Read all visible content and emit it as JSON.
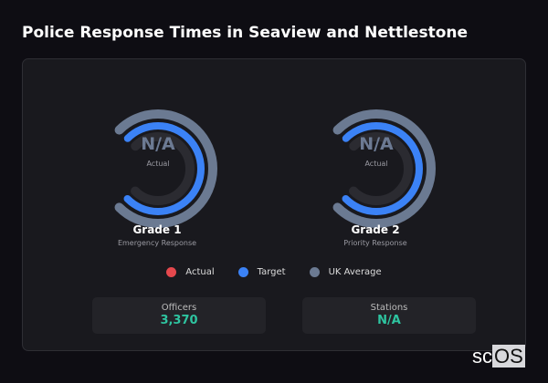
{
  "title": "Police Response Times in Seaview and Nettlestone",
  "gauges": [
    {
      "value": "N/A",
      "sub": "Actual",
      "label": "Grade 1",
      "desc": "Emergency Response"
    },
    {
      "value": "N/A",
      "sub": "Actual",
      "label": "Grade 2",
      "desc": "Priority Response"
    }
  ],
  "legend": [
    {
      "label": "Actual",
      "color": "#e5484d"
    },
    {
      "label": "Target",
      "color": "#3b82f6"
    },
    {
      "label": "UK Average",
      "color": "#6b7a92"
    }
  ],
  "stats": [
    {
      "label": "Officers",
      "value": "3,370"
    },
    {
      "label": "Stations",
      "value": "N/A"
    }
  ],
  "logo": {
    "prefix": "sc",
    "boxed": "OS"
  }
}
